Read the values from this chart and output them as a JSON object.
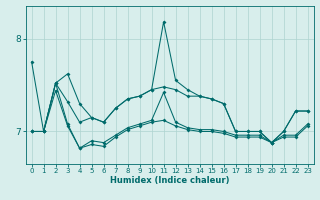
{
  "xlabel": "Humidex (Indice chaleur)",
  "background_color": "#d8eeec",
  "grid_color": "#aed4d0",
  "line_color": "#006b6b",
  "xlim": [
    -0.5,
    23.5
  ],
  "ylim": [
    6.65,
    8.35
  ],
  "yticks": [
    7,
    8
  ],
  "xticks": [
    0,
    1,
    2,
    3,
    4,
    5,
    6,
    7,
    8,
    9,
    10,
    11,
    12,
    13,
    14,
    15,
    16,
    17,
    18,
    19,
    20,
    21,
    22,
    23
  ],
  "s1": [
    7.75,
    7.0,
    7.52,
    7.62,
    7.3,
    7.15,
    7.1,
    7.25,
    7.35,
    7.38,
    7.45,
    8.18,
    7.55,
    7.45,
    7.38,
    7.35,
    7.3,
    7.0,
    7.0,
    7.0,
    6.88,
    7.0,
    7.22,
    7.22
  ],
  "s2": [
    7.0,
    7.0,
    7.52,
    7.32,
    7.1,
    7.15,
    7.1,
    7.25,
    7.35,
    7.38,
    7.45,
    7.48,
    7.45,
    7.38,
    7.38,
    7.35,
    7.3,
    7.0,
    7.0,
    7.0,
    6.88,
    7.0,
    7.22,
    7.22
  ],
  "s3": [
    7.0,
    7.0,
    7.52,
    7.08,
    6.82,
    6.9,
    6.88,
    6.96,
    7.04,
    7.08,
    7.12,
    7.42,
    7.1,
    7.04,
    7.02,
    7.02,
    7.0,
    6.96,
    6.96,
    6.96,
    6.88,
    6.96,
    6.96,
    7.08
  ],
  "s4": [
    7.0,
    7.0,
    7.44,
    7.06,
    6.82,
    6.86,
    6.84,
    6.94,
    7.02,
    7.06,
    7.1,
    7.12,
    7.06,
    7.02,
    7.0,
    7.0,
    6.98,
    6.94,
    6.94,
    6.94,
    6.88,
    6.94,
    6.94,
    7.06
  ]
}
